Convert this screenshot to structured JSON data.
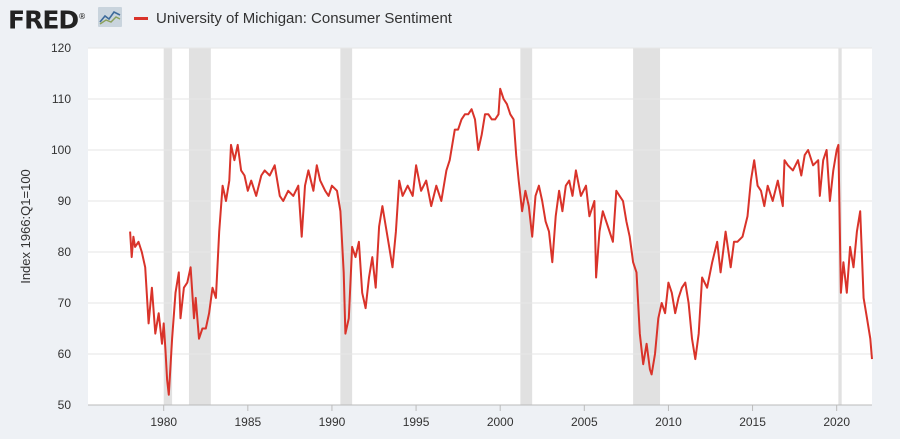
{
  "brand": {
    "name": "FRED",
    "registered": "®"
  },
  "colors": {
    "series": "#d9332a",
    "recession": "#e1e1e1",
    "grid": "#e6e6e6",
    "plot_bg": "#ffffff"
  },
  "chart_data": {
    "type": "line",
    "title": "",
    "xlabel": "",
    "ylabel": "Index 1966:Q1=100",
    "xlim": [
      1975.5,
      2022.1
    ],
    "ylim": [
      50,
      120
    ],
    "yticks": [
      50,
      60,
      70,
      80,
      90,
      100,
      110,
      120
    ],
    "xticks": [
      1980,
      1985,
      1990,
      1995,
      2000,
      2005,
      2010,
      2015,
      2020
    ],
    "grid": true,
    "legend": "top-left",
    "recessions": [
      [
        1980.0,
        1980.5
      ],
      [
        1981.5,
        1982.8
      ],
      [
        1990.5,
        1991.2
      ],
      [
        2001.2,
        2001.9
      ],
      [
        2007.9,
        2009.5
      ],
      [
        2020.1,
        2020.3
      ]
    ],
    "series": [
      {
        "name": "University of Michigan: Consumer Sentiment",
        "points": [
          [
            1978.0,
            84
          ],
          [
            1978.1,
            79
          ],
          [
            1978.2,
            83
          ],
          [
            1978.3,
            81
          ],
          [
            1978.5,
            82
          ],
          [
            1978.7,
            80
          ],
          [
            1978.9,
            77
          ],
          [
            1979.1,
            66
          ],
          [
            1979.3,
            73
          ],
          [
            1979.5,
            64
          ],
          [
            1979.7,
            68
          ],
          [
            1979.9,
            62
          ],
          [
            1980.0,
            66
          ],
          [
            1980.1,
            61
          ],
          [
            1980.2,
            55
          ],
          [
            1980.3,
            52
          ],
          [
            1980.5,
            63
          ],
          [
            1980.7,
            72
          ],
          [
            1980.9,
            76
          ],
          [
            1981.0,
            67
          ],
          [
            1981.2,
            73
          ],
          [
            1981.4,
            74
          ],
          [
            1981.6,
            77
          ],
          [
            1981.8,
            67
          ],
          [
            1981.9,
            71
          ],
          [
            1982.1,
            63
          ],
          [
            1982.3,
            65
          ],
          [
            1982.5,
            65
          ],
          [
            1982.7,
            68
          ],
          [
            1982.9,
            73
          ],
          [
            1983.1,
            71
          ],
          [
            1983.3,
            84
          ],
          [
            1983.5,
            93
          ],
          [
            1983.7,
            90
          ],
          [
            1983.9,
            94
          ],
          [
            1984.0,
            101
          ],
          [
            1984.2,
            98
          ],
          [
            1984.4,
            101
          ],
          [
            1984.6,
            96
          ],
          [
            1984.8,
            95
          ],
          [
            1985.0,
            92
          ],
          [
            1985.2,
            94
          ],
          [
            1985.5,
            91
          ],
          [
            1985.8,
            95
          ],
          [
            1986.0,
            96
          ],
          [
            1986.3,
            95
          ],
          [
            1986.6,
            97
          ],
          [
            1986.9,
            91
          ],
          [
            1987.1,
            90
          ],
          [
            1987.4,
            92
          ],
          [
            1987.7,
            91
          ],
          [
            1988.0,
            93
          ],
          [
            1988.2,
            83
          ],
          [
            1988.4,
            93
          ],
          [
            1988.6,
            96
          ],
          [
            1988.9,
            92
          ],
          [
            1989.1,
            97
          ],
          [
            1989.3,
            94
          ],
          [
            1989.6,
            92
          ],
          [
            1989.8,
            91
          ],
          [
            1990.0,
            93
          ],
          [
            1990.3,
            92
          ],
          [
            1990.5,
            88
          ],
          [
            1990.7,
            76
          ],
          [
            1990.8,
            64
          ],
          [
            1991.0,
            67
          ],
          [
            1991.2,
            81
          ],
          [
            1991.4,
            79
          ],
          [
            1991.6,
            82
          ],
          [
            1991.8,
            72
          ],
          [
            1992.0,
            69
          ],
          [
            1992.2,
            75
          ],
          [
            1992.4,
            79
          ],
          [
            1992.6,
            73
          ],
          [
            1992.8,
            85
          ],
          [
            1993.0,
            89
          ],
          [
            1993.2,
            85
          ],
          [
            1993.4,
            81
          ],
          [
            1993.6,
            77
          ],
          [
            1993.8,
            84
          ],
          [
            1994.0,
            94
          ],
          [
            1994.2,
            91
          ],
          [
            1994.5,
            93
          ],
          [
            1994.8,
            91
          ],
          [
            1995.0,
            97
          ],
          [
            1995.3,
            92
          ],
          [
            1995.6,
            94
          ],
          [
            1995.9,
            89
          ],
          [
            1996.2,
            93
          ],
          [
            1996.5,
            90
          ],
          [
            1996.8,
            96
          ],
          [
            1997.0,
            98
          ],
          [
            1997.3,
            104
          ],
          [
            1997.5,
            104
          ],
          [
            1997.7,
            106
          ],
          [
            1997.9,
            107
          ],
          [
            1998.1,
            107
          ],
          [
            1998.3,
            108
          ],
          [
            1998.5,
            106
          ],
          [
            1998.7,
            100
          ],
          [
            1998.9,
            103
          ],
          [
            1999.1,
            107
          ],
          [
            1999.3,
            107
          ],
          [
            1999.5,
            106
          ],
          [
            1999.7,
            106
          ],
          [
            1999.9,
            107
          ],
          [
            2000.0,
            112
          ],
          [
            2000.2,
            110
          ],
          [
            2000.4,
            109
          ],
          [
            2000.6,
            107
          ],
          [
            2000.8,
            106
          ],
          [
            2000.95,
            99
          ],
          [
            2001.1,
            94
          ],
          [
            2001.3,
            88
          ],
          [
            2001.5,
            92
          ],
          [
            2001.7,
            89
          ],
          [
            2001.9,
            83
          ],
          [
            2002.1,
            91
          ],
          [
            2002.3,
            93
          ],
          [
            2002.5,
            90
          ],
          [
            2002.7,
            86
          ],
          [
            2002.9,
            84
          ],
          [
            2003.1,
            78
          ],
          [
            2003.3,
            87
          ],
          [
            2003.5,
            92
          ],
          [
            2003.7,
            88
          ],
          [
            2003.9,
            93
          ],
          [
            2004.1,
            94
          ],
          [
            2004.3,
            91
          ],
          [
            2004.5,
            96
          ],
          [
            2004.8,
            91
          ],
          [
            2005.1,
            93
          ],
          [
            2005.3,
            87
          ],
          [
            2005.6,
            90
          ],
          [
            2005.7,
            75
          ],
          [
            2005.9,
            84
          ],
          [
            2006.1,
            88
          ],
          [
            2006.4,
            85
          ],
          [
            2006.7,
            82
          ],
          [
            2006.9,
            92
          ],
          [
            2007.1,
            91
          ],
          [
            2007.3,
            90
          ],
          [
            2007.5,
            86
          ],
          [
            2007.7,
            83
          ],
          [
            2007.9,
            78
          ],
          [
            2008.1,
            76
          ],
          [
            2008.3,
            64
          ],
          [
            2008.5,
            58
          ],
          [
            2008.7,
            62
          ],
          [
            2008.9,
            57
          ],
          [
            2009.0,
            56
          ],
          [
            2009.2,
            60
          ],
          [
            2009.4,
            67
          ],
          [
            2009.6,
            70
          ],
          [
            2009.8,
            68
          ],
          [
            2010.0,
            74
          ],
          [
            2010.2,
            72
          ],
          [
            2010.4,
            68
          ],
          [
            2010.6,
            71
          ],
          [
            2010.8,
            73
          ],
          [
            2011.0,
            74
          ],
          [
            2011.2,
            70
          ],
          [
            2011.4,
            63
          ],
          [
            2011.6,
            59
          ],
          [
            2011.8,
            64
          ],
          [
            2012.0,
            75
          ],
          [
            2012.3,
            73
          ],
          [
            2012.6,
            78
          ],
          [
            2012.9,
            82
          ],
          [
            2013.1,
            76
          ],
          [
            2013.4,
            84
          ],
          [
            2013.7,
            77
          ],
          [
            2013.9,
            82
          ],
          [
            2014.1,
            82
          ],
          [
            2014.4,
            83
          ],
          [
            2014.7,
            87
          ],
          [
            2014.9,
            94
          ],
          [
            2015.1,
            98
          ],
          [
            2015.3,
            93
          ],
          [
            2015.5,
            92
          ],
          [
            2015.7,
            89
          ],
          [
            2015.9,
            93
          ],
          [
            2016.2,
            90
          ],
          [
            2016.5,
            94
          ],
          [
            2016.8,
            89
          ],
          [
            2016.9,
            98
          ],
          [
            2017.1,
            97
          ],
          [
            2017.4,
            96
          ],
          [
            2017.7,
            98
          ],
          [
            2017.9,
            95
          ],
          [
            2018.1,
            99
          ],
          [
            2018.3,
            100
          ],
          [
            2018.6,
            97
          ],
          [
            2018.9,
            98
          ],
          [
            2019.0,
            91
          ],
          [
            2019.2,
            98
          ],
          [
            2019.4,
            100
          ],
          [
            2019.6,
            90
          ],
          [
            2019.8,
            96
          ],
          [
            2020.0,
            100
          ],
          [
            2020.1,
            101
          ],
          [
            2020.25,
            72
          ],
          [
            2020.4,
            78
          ],
          [
            2020.6,
            72
          ],
          [
            2020.8,
            81
          ],
          [
            2021.0,
            77
          ],
          [
            2021.2,
            84
          ],
          [
            2021.4,
            88
          ],
          [
            2021.6,
            71
          ],
          [
            2021.8,
            67
          ],
          [
            2022.0,
            63
          ],
          [
            2022.1,
            59
          ]
        ]
      }
    ]
  }
}
